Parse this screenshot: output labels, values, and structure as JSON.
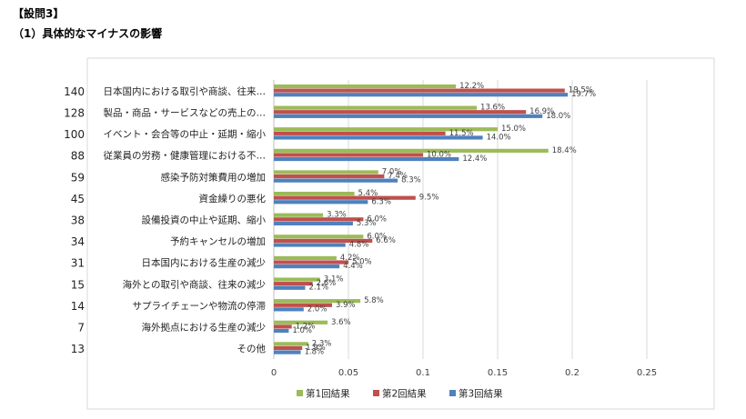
{
  "heading": {
    "question": "【設問3】",
    "subtitle": "（1）具体的なマイナスの影響"
  },
  "chart_data": {
    "type": "bar",
    "orientation": "horizontal",
    "categories": [
      "日本国内における取引や商談、往来…",
      "製品・商品・サービスなどの売上の…",
      "イベント・会合等の中止・延期・縮小",
      "従業員の労務・健康管理における不…",
      "感染予防対策費用の増加",
      "資金繰りの悪化",
      "設備投資の中止や延期、縮小",
      "予約キャンセルの増加",
      "日本国内における生産の減少",
      "海外との取引や商談、往来の減少",
      "サプライチェーンや物流の停滞",
      "海外拠点における生産の減少",
      "その他"
    ],
    "counts": [
      "140",
      "128",
      "100",
      "88",
      "59",
      "45",
      "38",
      "34",
      "31",
      "15",
      "14",
      "7",
      "13"
    ],
    "series": [
      {
        "name": "第1回結果",
        "color": "#9BBB59",
        "values": [
          0.122,
          0.136,
          0.15,
          0.184,
          0.07,
          0.054,
          0.033,
          0.06,
          0.042,
          0.031,
          0.058,
          0.036,
          0.023
        ],
        "labels": [
          "12.2%",
          "13.6%",
          "15.0%",
          "18.4%",
          "7.0%",
          "5.4%",
          "3.3%",
          "6.0%",
          "4.2%",
          "3.1%",
          "5.8%",
          "3.6%",
          "2.3%"
        ]
      },
      {
        "name": "第2回結果",
        "color": "#C0504D",
        "values": [
          0.195,
          0.169,
          0.115,
          0.1,
          0.074,
          0.095,
          0.06,
          0.066,
          0.05,
          0.026,
          0.039,
          0.012,
          0.019
        ],
        "labels": [
          "19.5%",
          "16.9%",
          "11.5%",
          "10.0%",
          "7.4%",
          "9.5%",
          "6.0%",
          "6.6%",
          "5.0%",
          "2.6%",
          "3.9%",
          "1.2%",
          "1.9%"
        ]
      },
      {
        "name": "第3回結果",
        "color": "#4F81BD",
        "values": [
          0.197,
          0.18,
          0.14,
          0.124,
          0.083,
          0.063,
          0.053,
          0.048,
          0.044,
          0.021,
          0.02,
          0.01,
          0.018
        ],
        "labels": [
          "19.7%",
          "18.0%",
          "14.0%",
          "12.4%",
          "8.3%",
          "6.3%",
          "5.3%",
          "4.8%",
          "4.4%",
          "2.1%",
          "2.0%",
          "1.0%",
          "1.8%"
        ]
      }
    ],
    "xlim": [
      0,
      0.25
    ],
    "xticks": [
      "0",
      "0.05",
      "0.1",
      "0.15",
      "0.2",
      "0.25"
    ],
    "grid": true,
    "legend_position": "bottom"
  }
}
